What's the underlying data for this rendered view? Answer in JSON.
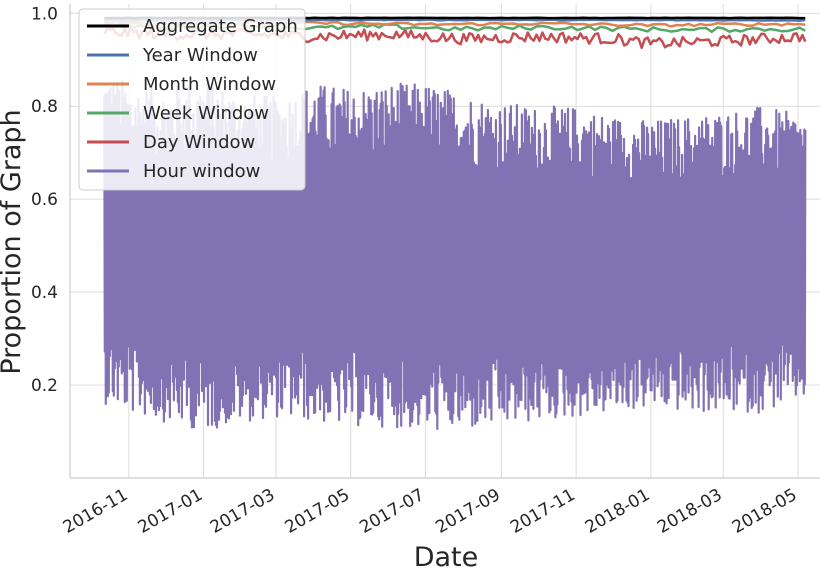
{
  "chart_data": {
    "type": "line",
    "xlabel": "Date",
    "ylabel": "Proportion of Graph",
    "x_range": [
      "2016-09-14",
      "2018-05-19"
    ],
    "ylim": [
      0.0,
      1.02
    ],
    "x_ticks": [
      "2016-11-01",
      "2017-01-01",
      "2017-03-01",
      "2017-05-01",
      "2017-07-01",
      "2017-09-01",
      "2017-11-01",
      "2018-01-01",
      "2018-03-01",
      "2018-05-01"
    ],
    "x_tick_labels": [
      "2016-11",
      "2017-01",
      "2017-03",
      "2017-05",
      "2017-07",
      "2017-09",
      "2017-11",
      "2018-01",
      "2018-03",
      "2018-05"
    ],
    "y_ticks": [
      0.2,
      0.4,
      0.6,
      0.8,
      1.0
    ],
    "y_tick_labels": [
      "0.2",
      "0.4",
      "0.6",
      "0.8",
      "1.0"
    ],
    "grid": true,
    "legend_position": "top-left",
    "series": [
      {
        "name": "Aggregate Graph",
        "color": "#000000",
        "x_start": "2016-10-12",
        "x_end": "2018-05-07",
        "points": [
          [
            "2016-10-12",
            0.99
          ],
          [
            "2017-06-01",
            0.99
          ],
          [
            "2018-05-07",
            0.99
          ]
        ]
      },
      {
        "name": "Year Window",
        "color": "#4C72B0",
        "x_start": "2016-10-12",
        "x_end": "2018-05-07",
        "points": [
          [
            "2016-10-12",
            0.985
          ],
          [
            "2017-06-01",
            0.986
          ],
          [
            "2018-05-07",
            0.985
          ]
        ]
      },
      {
        "name": "Month Window",
        "color": "#DD8452",
        "x_start": "2016-10-12",
        "x_end": "2018-05-07",
        "points": [
          [
            "2016-10-12",
            0.98
          ],
          [
            "2017-01-01",
            0.977
          ],
          [
            "2017-04-01",
            0.979
          ],
          [
            "2017-07-01",
            0.976
          ],
          [
            "2017-10-01",
            0.978
          ],
          [
            "2018-01-01",
            0.974
          ],
          [
            "2018-03-01",
            0.976
          ],
          [
            "2018-05-07",
            0.977
          ]
        ]
      },
      {
        "name": "Week Window",
        "color": "#55A868",
        "x_start": "2016-10-12",
        "x_end": "2018-05-07",
        "points": [
          [
            "2016-10-12",
            0.975
          ],
          [
            "2016-12-01",
            0.97
          ],
          [
            "2017-02-01",
            0.973
          ],
          [
            "2017-04-01",
            0.968
          ],
          [
            "2017-06-01",
            0.972
          ],
          [
            "2017-08-01",
            0.966
          ],
          [
            "2017-10-01",
            0.97
          ],
          [
            "2017-12-01",
            0.967
          ],
          [
            "2018-02-01",
            0.964
          ],
          [
            "2018-04-01",
            0.966
          ],
          [
            "2018-05-07",
            0.965
          ]
        ]
      },
      {
        "name": "Day Window",
        "color": "#C44E52",
        "x_start": "2016-10-12",
        "x_end": "2018-05-07",
        "points": [
          [
            "2016-10-12",
            0.96
          ],
          [
            "2016-12-01",
            0.955
          ],
          [
            "2017-02-01",
            0.955
          ],
          [
            "2017-04-01",
            0.95
          ],
          [
            "2017-06-01",
            0.955
          ],
          [
            "2017-08-01",
            0.945
          ],
          [
            "2017-10-01",
            0.95
          ],
          [
            "2017-12-01",
            0.945
          ],
          [
            "2018-01-01",
            0.935
          ],
          [
            "2018-03-01",
            0.94
          ],
          [
            "2018-05-07",
            0.95
          ]
        ]
      },
      {
        "name": "Hour window",
        "color": "#8172B3",
        "x_start": "2016-10-12",
        "x_end": "2018-05-07",
        "band": [
          [
            "2016-10-12",
            0.16,
            0.88
          ],
          [
            "2016-11-01",
            0.14,
            0.85
          ],
          [
            "2016-12-01",
            0.12,
            0.84
          ],
          [
            "2017-01-01",
            0.1,
            0.86
          ],
          [
            "2017-02-01",
            0.12,
            0.83
          ],
          [
            "2017-03-01",
            0.13,
            0.82
          ],
          [
            "2017-04-01",
            0.12,
            0.85
          ],
          [
            "2017-05-01",
            0.11,
            0.84
          ],
          [
            "2017-06-01",
            0.11,
            0.85
          ],
          [
            "2017-07-01",
            0.1,
            0.85
          ],
          [
            "2017-08-01",
            0.1,
            0.83
          ],
          [
            "2017-09-01",
            0.11,
            0.81
          ],
          [
            "2017-10-01",
            0.12,
            0.8
          ],
          [
            "2017-11-01",
            0.13,
            0.8
          ],
          [
            "2017-12-01",
            0.14,
            0.78
          ],
          [
            "2018-01-01",
            0.15,
            0.77
          ],
          [
            "2018-02-01",
            0.14,
            0.78
          ],
          [
            "2018-03-01",
            0.14,
            0.79
          ],
          [
            "2018-04-01",
            0.14,
            0.8
          ],
          [
            "2018-05-07",
            0.17,
            0.78
          ]
        ]
      }
    ]
  }
}
